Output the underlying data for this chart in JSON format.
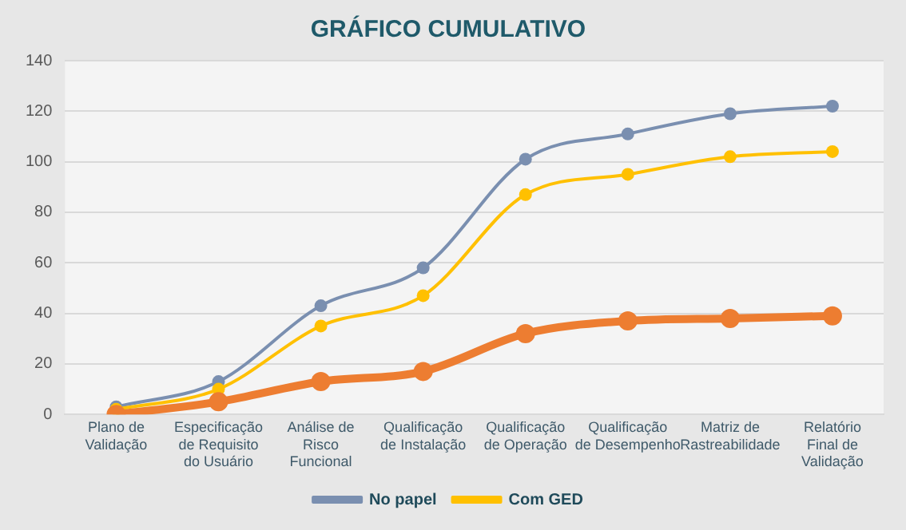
{
  "chart_data": {
    "type": "line",
    "title": "GRÁFICO CUMULATIVO",
    "categories": [
      "Plano de Validação",
      "Especificação de Requisito do Usuário",
      "Análise de Risco Funcional",
      "Qualificação de Instalação",
      "Qualificação de Operação",
      "Qualificação de Desempenho",
      "Matriz de Rastreabilidade",
      "Relatório Final de Validação"
    ],
    "series": [
      {
        "name": "No papel",
        "color": "#7a8fb0",
        "values": [
          3,
          13,
          43,
          58,
          101,
          111,
          119,
          122
        ]
      },
      {
        "name": "Com GED",
        "color": "#ffc000",
        "values": [
          2,
          10,
          35,
          47,
          87,
          95,
          102,
          104
        ]
      },
      {
        "color": "#ed7d31",
        "values": [
          0,
          5,
          13,
          17,
          32,
          37,
          38,
          39
        ]
      }
    ],
    "ylim": [
      0,
      140
    ],
    "yticks": [
      0,
      20,
      40,
      60,
      80,
      100,
      120,
      140
    ],
    "grid": "y",
    "legend": "bottom",
    "marker": "circle",
    "line_style": "solid"
  }
}
